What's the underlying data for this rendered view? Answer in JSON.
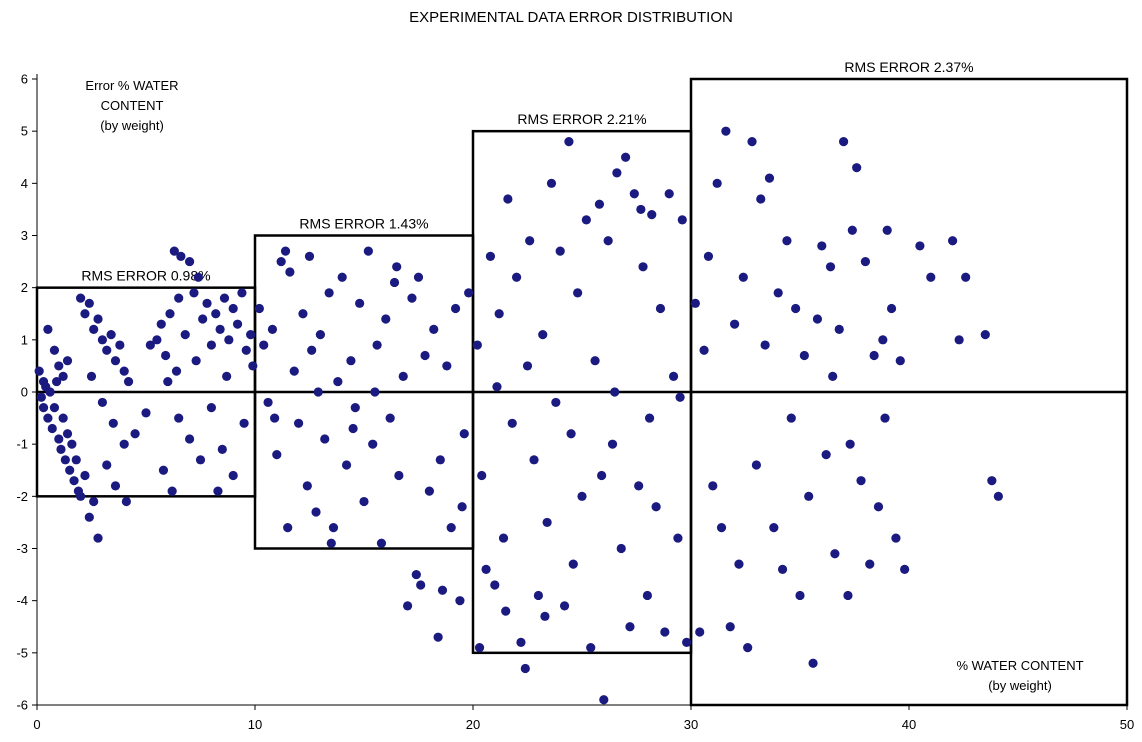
{
  "chart_data": {
    "type": "scatter",
    "title": "EXPERIMENTAL DATA ERROR DISTRIBUTION",
    "ylabel_lines": [
      "Error % WATER",
      "CONTENT",
      "(by weight)"
    ],
    "xlabel_lines": [
      "% WATER CONTENT",
      "(by weight)"
    ],
    "xlim": [
      0,
      50
    ],
    "ylim": [
      -6,
      6
    ],
    "x_ticks": [
      "0",
      "10",
      "20",
      "30",
      "40",
      "50"
    ],
    "y_ticks": [
      "6",
      "5",
      "4",
      "3",
      "2",
      "1",
      "0",
      "-1",
      "-2",
      "-3",
      "-4",
      "-5",
      "-6"
    ],
    "marker_color": "#1a1a80",
    "regions": [
      {
        "label": "RMS ERROR  0.98%",
        "x_range": [
          0,
          10
        ],
        "y_range": [
          -2,
          2
        ]
      },
      {
        "label": "RMS ERROR  1.43%",
        "x_range": [
          10,
          20
        ],
        "y_range": [
          -3,
          3
        ]
      },
      {
        "label": "RMS ERROR  2.21%",
        "x_range": [
          20,
          30
        ],
        "y_range": [
          -5,
          5
        ]
      },
      {
        "label": "RMS ERROR  2.37%",
        "x_range": [
          30,
          50
        ],
        "y_range": [
          -6,
          6
        ]
      }
    ],
    "points": [
      [
        0.1,
        0.4
      ],
      [
        0.2,
        -0.1
      ],
      [
        0.3,
        0.2
      ],
      [
        0.3,
        -0.3
      ],
      [
        0.4,
        0.1
      ],
      [
        0.5,
        -0.5
      ],
      [
        0.6,
        0.0
      ],
      [
        0.7,
        -0.7
      ],
      [
        0.8,
        -0.3
      ],
      [
        0.9,
        0.2
      ],
      [
        1.0,
        -0.9
      ],
      [
        1.1,
        -1.1
      ],
      [
        1.2,
        -0.5
      ],
      [
        1.3,
        -1.3
      ],
      [
        1.4,
        -0.8
      ],
      [
        1.5,
        -1.5
      ],
      [
        1.6,
        -1.0
      ],
      [
        1.7,
        -1.7
      ],
      [
        1.8,
        -1.3
      ],
      [
        1.9,
        -1.9
      ],
      [
        2.0,
        -2.0
      ],
      [
        2.2,
        -1.6
      ],
      [
        2.4,
        -2.4
      ],
      [
        2.6,
        -2.1
      ],
      [
        2.8,
        -2.8
      ],
      [
        0.5,
        1.2
      ],
      [
        0.8,
        0.8
      ],
      [
        1.0,
        0.5
      ],
      [
        1.2,
        0.3
      ],
      [
        1.4,
        0.6
      ],
      [
        2.0,
        1.8
      ],
      [
        2.2,
        1.5
      ],
      [
        2.4,
        1.7
      ],
      [
        2.6,
        1.2
      ],
      [
        2.8,
        1.4
      ],
      [
        3.0,
        1.0
      ],
      [
        3.2,
        0.8
      ],
      [
        3.4,
        1.1
      ],
      [
        3.6,
        0.6
      ],
      [
        3.8,
        0.9
      ],
      [
        4.0,
        0.4
      ],
      [
        4.2,
        0.2
      ],
      [
        2.5,
        0.3
      ],
      [
        3.0,
        -0.2
      ],
      [
        3.5,
        -0.6
      ],
      [
        4.0,
        -1.0
      ],
      [
        4.5,
        -0.8
      ],
      [
        3.2,
        -1.4
      ],
      [
        3.6,
        -1.8
      ],
      [
        4.1,
        -2.1
      ],
      [
        5.5,
        1.0
      ],
      [
        5.7,
        1.3
      ],
      [
        5.9,
        0.7
      ],
      [
        6.1,
        1.5
      ],
      [
        6.3,
        2.7
      ],
      [
        6.5,
        1.8
      ],
      [
        6.6,
        2.6
      ],
      [
        6.8,
        1.1
      ],
      [
        7.0,
        2.5
      ],
      [
        7.2,
        1.9
      ],
      [
        7.4,
        2.2
      ],
      [
        7.6,
        1.4
      ],
      [
        7.8,
        1.7
      ],
      [
        8.0,
        0.9
      ],
      [
        8.2,
        1.5
      ],
      [
        8.4,
        1.2
      ],
      [
        8.6,
        1.8
      ],
      [
        8.8,
        1.0
      ],
      [
        9.0,
        1.6
      ],
      [
        9.2,
        1.3
      ],
      [
        9.4,
        1.9
      ],
      [
        9.6,
        0.8
      ],
      [
        9.8,
        1.1
      ],
      [
        6.0,
        0.2
      ],
      [
        6.5,
        -0.5
      ],
      [
        7.0,
        -0.9
      ],
      [
        7.5,
        -1.3
      ],
      [
        8.0,
        -0.3
      ],
      [
        8.5,
        -1.1
      ],
      [
        9.0,
        -1.6
      ],
      [
        6.2,
        -1.9
      ],
      [
        5.8,
        -1.5
      ],
      [
        8.3,
        -1.9
      ],
      [
        9.5,
        -0.6
      ],
      [
        5.0,
        -0.4
      ],
      [
        5.2,
        0.9
      ],
      [
        6.4,
        0.4
      ],
      [
        7.3,
        0.6
      ],
      [
        8.7,
        0.3
      ],
      [
        9.9,
        0.5
      ],
      [
        10.2,
        1.6
      ],
      [
        10.4,
        0.9
      ],
      [
        10.6,
        -0.2
      ],
      [
        10.8,
        1.2
      ],
      [
        11.0,
        -1.2
      ],
      [
        11.2,
        2.5
      ],
      [
        11.4,
        2.7
      ],
      [
        11.6,
        2.3
      ],
      [
        11.8,
        0.4
      ],
      [
        12.0,
        -0.6
      ],
      [
        12.2,
        1.5
      ],
      [
        12.4,
        -1.8
      ],
      [
        12.6,
        0.8
      ],
      [
        12.8,
        -2.3
      ],
      [
        13.0,
        1.1
      ],
      [
        13.2,
        -0.9
      ],
      [
        13.4,
        1.9
      ],
      [
        13.6,
        -2.6
      ],
      [
        13.8,
        0.2
      ],
      [
        14.0,
        2.2
      ],
      [
        14.2,
        -1.4
      ],
      [
        14.4,
        0.6
      ],
      [
        14.6,
        -0.3
      ],
      [
        14.8,
        1.7
      ],
      [
        15.0,
        -2.1
      ],
      [
        15.2,
        2.7
      ],
      [
        15.4,
        -1.0
      ],
      [
        15.6,
        0.9
      ],
      [
        15.8,
        -2.9
      ],
      [
        16.0,
        1.4
      ],
      [
        16.2,
        -0.5
      ],
      [
        16.4,
        2.1
      ],
      [
        16.6,
        -1.6
      ],
      [
        16.8,
        0.3
      ],
      [
        17.0,
        -4.1
      ],
      [
        17.2,
        1.8
      ],
      [
        17.4,
        -3.5
      ],
      [
        17.6,
        -3.7
      ],
      [
        17.8,
        0.7
      ],
      [
        18.0,
        -1.9
      ],
      [
        18.2,
        1.2
      ],
      [
        18.4,
        -4.7
      ],
      [
        18.6,
        -3.8
      ],
      [
        18.8,
        0.5
      ],
      [
        19.0,
        -2.6
      ],
      [
        19.2,
        1.6
      ],
      [
        19.4,
        -4.0
      ],
      [
        19.6,
        -0.8
      ],
      [
        19.8,
        1.9
      ],
      [
        11.5,
        -2.6
      ],
      [
        12.5,
        2.6
      ],
      [
        13.5,
        -2.9
      ],
      [
        16.5,
        2.4
      ],
      [
        17.5,
        2.2
      ],
      [
        18.5,
        -1.3
      ],
      [
        19.5,
        -2.2
      ],
      [
        14.5,
        -0.7
      ],
      [
        15.5,
        0.0
      ],
      [
        10.9,
        -0.5
      ],
      [
        12.9,
        0.0
      ],
      [
        20.2,
        0.9
      ],
      [
        20.4,
        -1.6
      ],
      [
        20.6,
        -3.4
      ],
      [
        20.8,
        2.6
      ],
      [
        21.0,
        -3.7
      ],
      [
        21.2,
        1.5
      ],
      [
        21.4,
        -2.8
      ],
      [
        21.6,
        3.7
      ],
      [
        21.8,
        -0.6
      ],
      [
        22.0,
        2.2
      ],
      [
        22.2,
        -4.8
      ],
      [
        22.4,
        -5.3
      ],
      [
        22.6,
        2.9
      ],
      [
        22.8,
        -1.3
      ],
      [
        23.0,
        -3.9
      ],
      [
        23.2,
        1.1
      ],
      [
        23.4,
        -2.5
      ],
      [
        23.6,
        4.0
      ],
      [
        23.8,
        -0.2
      ],
      [
        24.0,
        2.7
      ],
      [
        24.2,
        -4.1
      ],
      [
        24.4,
        4.8
      ],
      [
        24.6,
        -3.3
      ],
      [
        24.8,
        1.9
      ],
      [
        25.0,
        -2.0
      ],
      [
        25.2,
        3.3
      ],
      [
        25.4,
        -4.9
      ],
      [
        25.6,
        0.6
      ],
      [
        25.8,
        3.6
      ],
      [
        26.0,
        -5.9
      ],
      [
        26.2,
        2.9
      ],
      [
        26.4,
        -1.0
      ],
      [
        26.6,
        4.2
      ],
      [
        26.8,
        -3.0
      ],
      [
        27.0,
        4.5
      ],
      [
        27.2,
        -4.5
      ],
      [
        27.4,
        3.8
      ],
      [
        27.6,
        -1.8
      ],
      [
        27.8,
        2.4
      ],
      [
        28.0,
        -3.9
      ],
      [
        28.2,
        3.4
      ],
      [
        28.4,
        -2.2
      ],
      [
        28.6,
        1.6
      ],
      [
        28.8,
        -4.6
      ],
      [
        29.0,
        3.8
      ],
      [
        29.2,
        0.3
      ],
      [
        29.4,
        -2.8
      ],
      [
        29.6,
        3.3
      ],
      [
        29.8,
        -4.8
      ],
      [
        20.3,
        -4.9
      ],
      [
        21.5,
        -4.2
      ],
      [
        23.3,
        -4.3
      ],
      [
        25.9,
        -1.6
      ],
      [
        27.7,
        3.5
      ],
      [
        29.5,
        -0.1
      ],
      [
        22.5,
        0.5
      ],
      [
        26.5,
        0.0
      ],
      [
        24.5,
        -0.8
      ],
      [
        21.1,
        0.1
      ],
      [
        28.1,
        -0.5
      ],
      [
        30.2,
        1.7
      ],
      [
        30.4,
        -4.6
      ],
      [
        30.6,
        0.8
      ],
      [
        30.8,
        2.6
      ],
      [
        31.0,
        -1.8
      ],
      [
        31.2,
        4.0
      ],
      [
        31.4,
        -2.6
      ],
      [
        31.6,
        5.0
      ],
      [
        31.8,
        -4.5
      ],
      [
        32.0,
        1.3
      ],
      [
        32.2,
        -3.3
      ],
      [
        32.4,
        2.2
      ],
      [
        32.6,
        -4.9
      ],
      [
        32.8,
        4.8
      ],
      [
        33.0,
        -1.4
      ],
      [
        33.2,
        3.7
      ],
      [
        33.4,
        0.9
      ],
      [
        33.6,
        4.1
      ],
      [
        33.8,
        -2.6
      ],
      [
        34.0,
        1.9
      ],
      [
        34.2,
        -3.4
      ],
      [
        34.4,
        2.9
      ],
      [
        34.6,
        -0.5
      ],
      [
        34.8,
        1.6
      ],
      [
        35.0,
        -3.9
      ],
      [
        35.2,
        0.7
      ],
      [
        35.4,
        -2.0
      ],
      [
        35.6,
        -5.2
      ],
      [
        35.8,
        1.4
      ],
      [
        36.0,
        2.8
      ],
      [
        36.2,
        -1.2
      ],
      [
        36.4,
        2.4
      ],
      [
        36.6,
        -3.1
      ],
      [
        36.8,
        1.2
      ],
      [
        37.0,
        4.8
      ],
      [
        37.2,
        -3.9
      ],
      [
        37.4,
        3.1
      ],
      [
        37.6,
        4.3
      ],
      [
        37.8,
        -1.7
      ],
      [
        38.0,
        2.5
      ],
      [
        38.2,
        -3.3
      ],
      [
        38.4,
        0.7
      ],
      [
        38.6,
        -2.2
      ],
      [
        38.8,
        1.0
      ],
      [
        39.0,
        3.1
      ],
      [
        39.2,
        1.6
      ],
      [
        39.4,
        -2.8
      ],
      [
        39.8,
        -3.4
      ],
      [
        40.5,
        2.8
      ],
      [
        41.0,
        2.2
      ],
      [
        42.0,
        2.9
      ],
      [
        42.3,
        1.0
      ],
      [
        42.6,
        2.2
      ],
      [
        43.5,
        1.1
      ],
      [
        43.8,
        -1.7
      ],
      [
        44.1,
        -2.0
      ],
      [
        37.3,
        -1.0
      ],
      [
        38.9,
        -0.5
      ],
      [
        39.6,
        0.6
      ],
      [
        36.5,
        0.3
      ]
    ]
  }
}
